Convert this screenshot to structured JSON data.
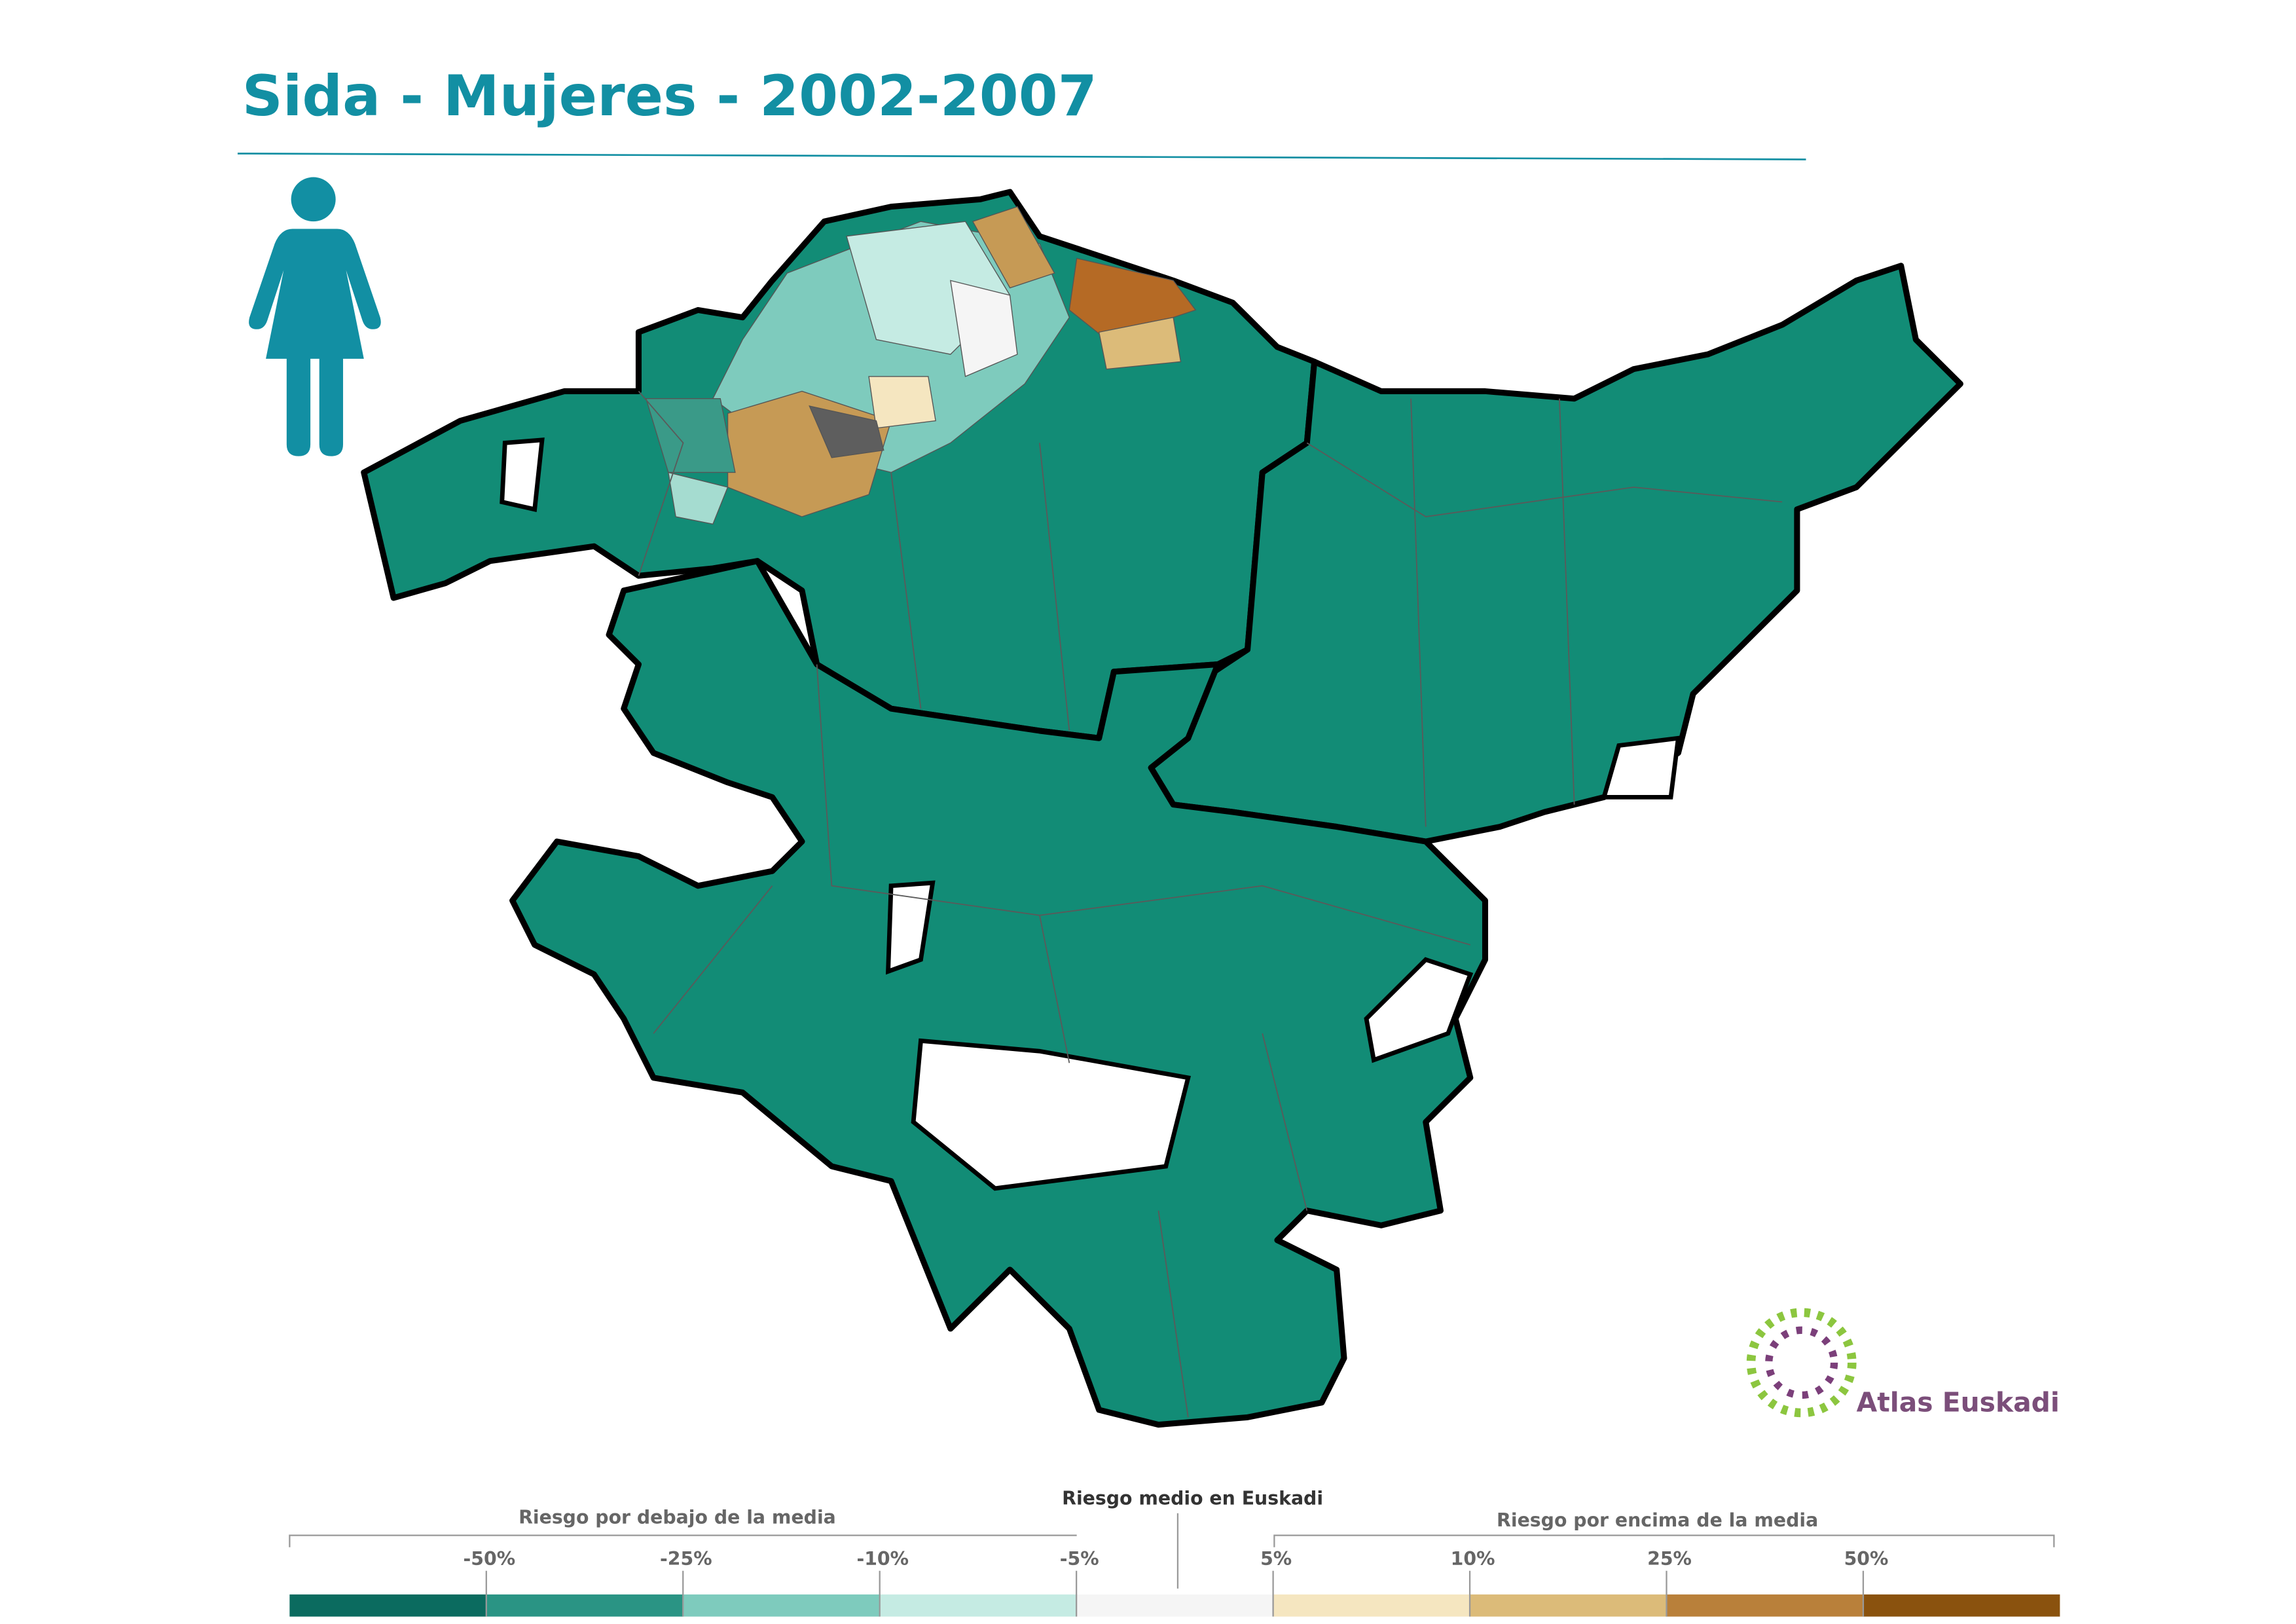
{
  "header": {
    "title": "Sida - Mujeres - 2002-2007"
  },
  "legend": {
    "below_label": "Riesgo por debajo de la media",
    "middle_label": "Riesgo medio en Euskadi",
    "above_label": "Riesgo por encima de la media",
    "ticks": [
      "-50%",
      "-25%",
      "-10%",
      "-5%",
      "5%",
      "10%",
      "25%",
      "50%"
    ],
    "colors": [
      "#0b6b5f",
      "#2a9484",
      "#7ecbbd",
      "#c5ebe3",
      "#f5f5f5",
      "#f5e6c0",
      "#dcbb79",
      "#b9803a",
      "#8a520e"
    ]
  },
  "logo": {
    "text": "Atlas Euskadi"
  }
}
